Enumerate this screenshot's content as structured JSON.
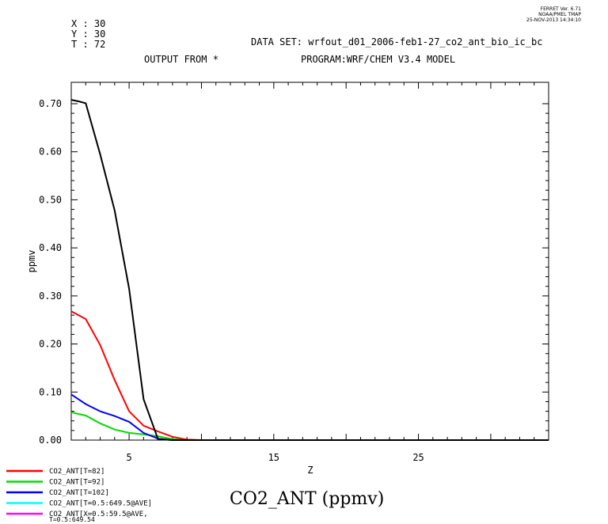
{
  "header": {
    "coords": [
      "X : 30",
      "Y : 30",
      "T : 72"
    ],
    "dataset": "DATA SET: wrfout_d01_2006-feb1-27_co2_ant_bio_ic_bc",
    "output_from": "OUTPUT FROM *",
    "program": "PROGRAM:WRF/CHEM V3.4 MODEL",
    "ferret": [
      "FERRET Ver. 6.71",
      "NOAA/PMEL TMAP",
      "25-NOV-2013 14:34:10"
    ]
  },
  "footer_title": "CO2_ANT (ppmv)",
  "chart_data": {
    "type": "line",
    "title": "",
    "xlabel": "Z",
    "ylabel": "ppmv",
    "xlim": [
      1,
      34
    ],
    "ylim": [
      0,
      0.7
    ],
    "xticks": [
      5,
      15,
      25
    ],
    "yticks": [
      0.0,
      0.1,
      0.2,
      0.3,
      0.4,
      0.5,
      0.6,
      0.7
    ],
    "ytick_labels": [
      "0.00",
      "0.10",
      "0.20",
      "0.30",
      "0.40",
      "0.50",
      "0.60",
      "0.70"
    ],
    "grid": false,
    "legend_position": "bottom-left",
    "series": [
      {
        "name": "CO2_ANT[T=82]",
        "color": "#ff0000",
        "x": [
          1,
          2,
          3,
          4,
          5,
          6,
          7,
          8,
          9,
          10,
          15,
          25,
          34
        ],
        "y": [
          0.268,
          0.252,
          0.198,
          0.125,
          0.06,
          0.03,
          0.018,
          0.007,
          0.001,
          0.0,
          0.0,
          0.0,
          0.0
        ]
      },
      {
        "name": "CO2_ANT[T=92]",
        "color": "#00dd00",
        "x": [
          1,
          2,
          3,
          4,
          5,
          6,
          7,
          8,
          9,
          34
        ],
        "y": [
          0.058,
          0.051,
          0.035,
          0.022,
          0.015,
          0.012,
          0.008,
          0.002,
          0.0,
          0.0
        ]
      },
      {
        "name": "CO2_ANT[T=102]",
        "color": "#0000ff",
        "x": [
          1,
          2,
          3,
          4,
          5,
          6,
          7,
          8,
          34
        ],
        "y": [
          0.095,
          0.075,
          0.06,
          0.05,
          0.038,
          0.015,
          0.003,
          0.0,
          0.0
        ]
      },
      {
        "name": "",
        "color": "#000000",
        "x": [
          1,
          1.5,
          2,
          3,
          4,
          5,
          6,
          7,
          8,
          34
        ],
        "y": [
          0.708,
          0.705,
          0.701,
          0.595,
          0.478,
          0.315,
          0.085,
          0.002,
          0.0,
          0.0
        ]
      }
    ],
    "legend": [
      {
        "label": "CO2_ANT[T=82]",
        "color": "#ff0000"
      },
      {
        "label": "CO2_ANT[T=92]",
        "color": "#00dd00"
      },
      {
        "label": "CO2_ANT[T=102]",
        "color": "#0000ff"
      },
      {
        "label": "CO2_ANT[T=0.5:649.5@AVE]",
        "color": "#00ffff"
      },
      {
        "label": "CO2_ANT[X=0.5:59.5@AVE,",
        "label2": "T=0.5:649.54",
        "color": "#ff00ff"
      }
    ]
  }
}
